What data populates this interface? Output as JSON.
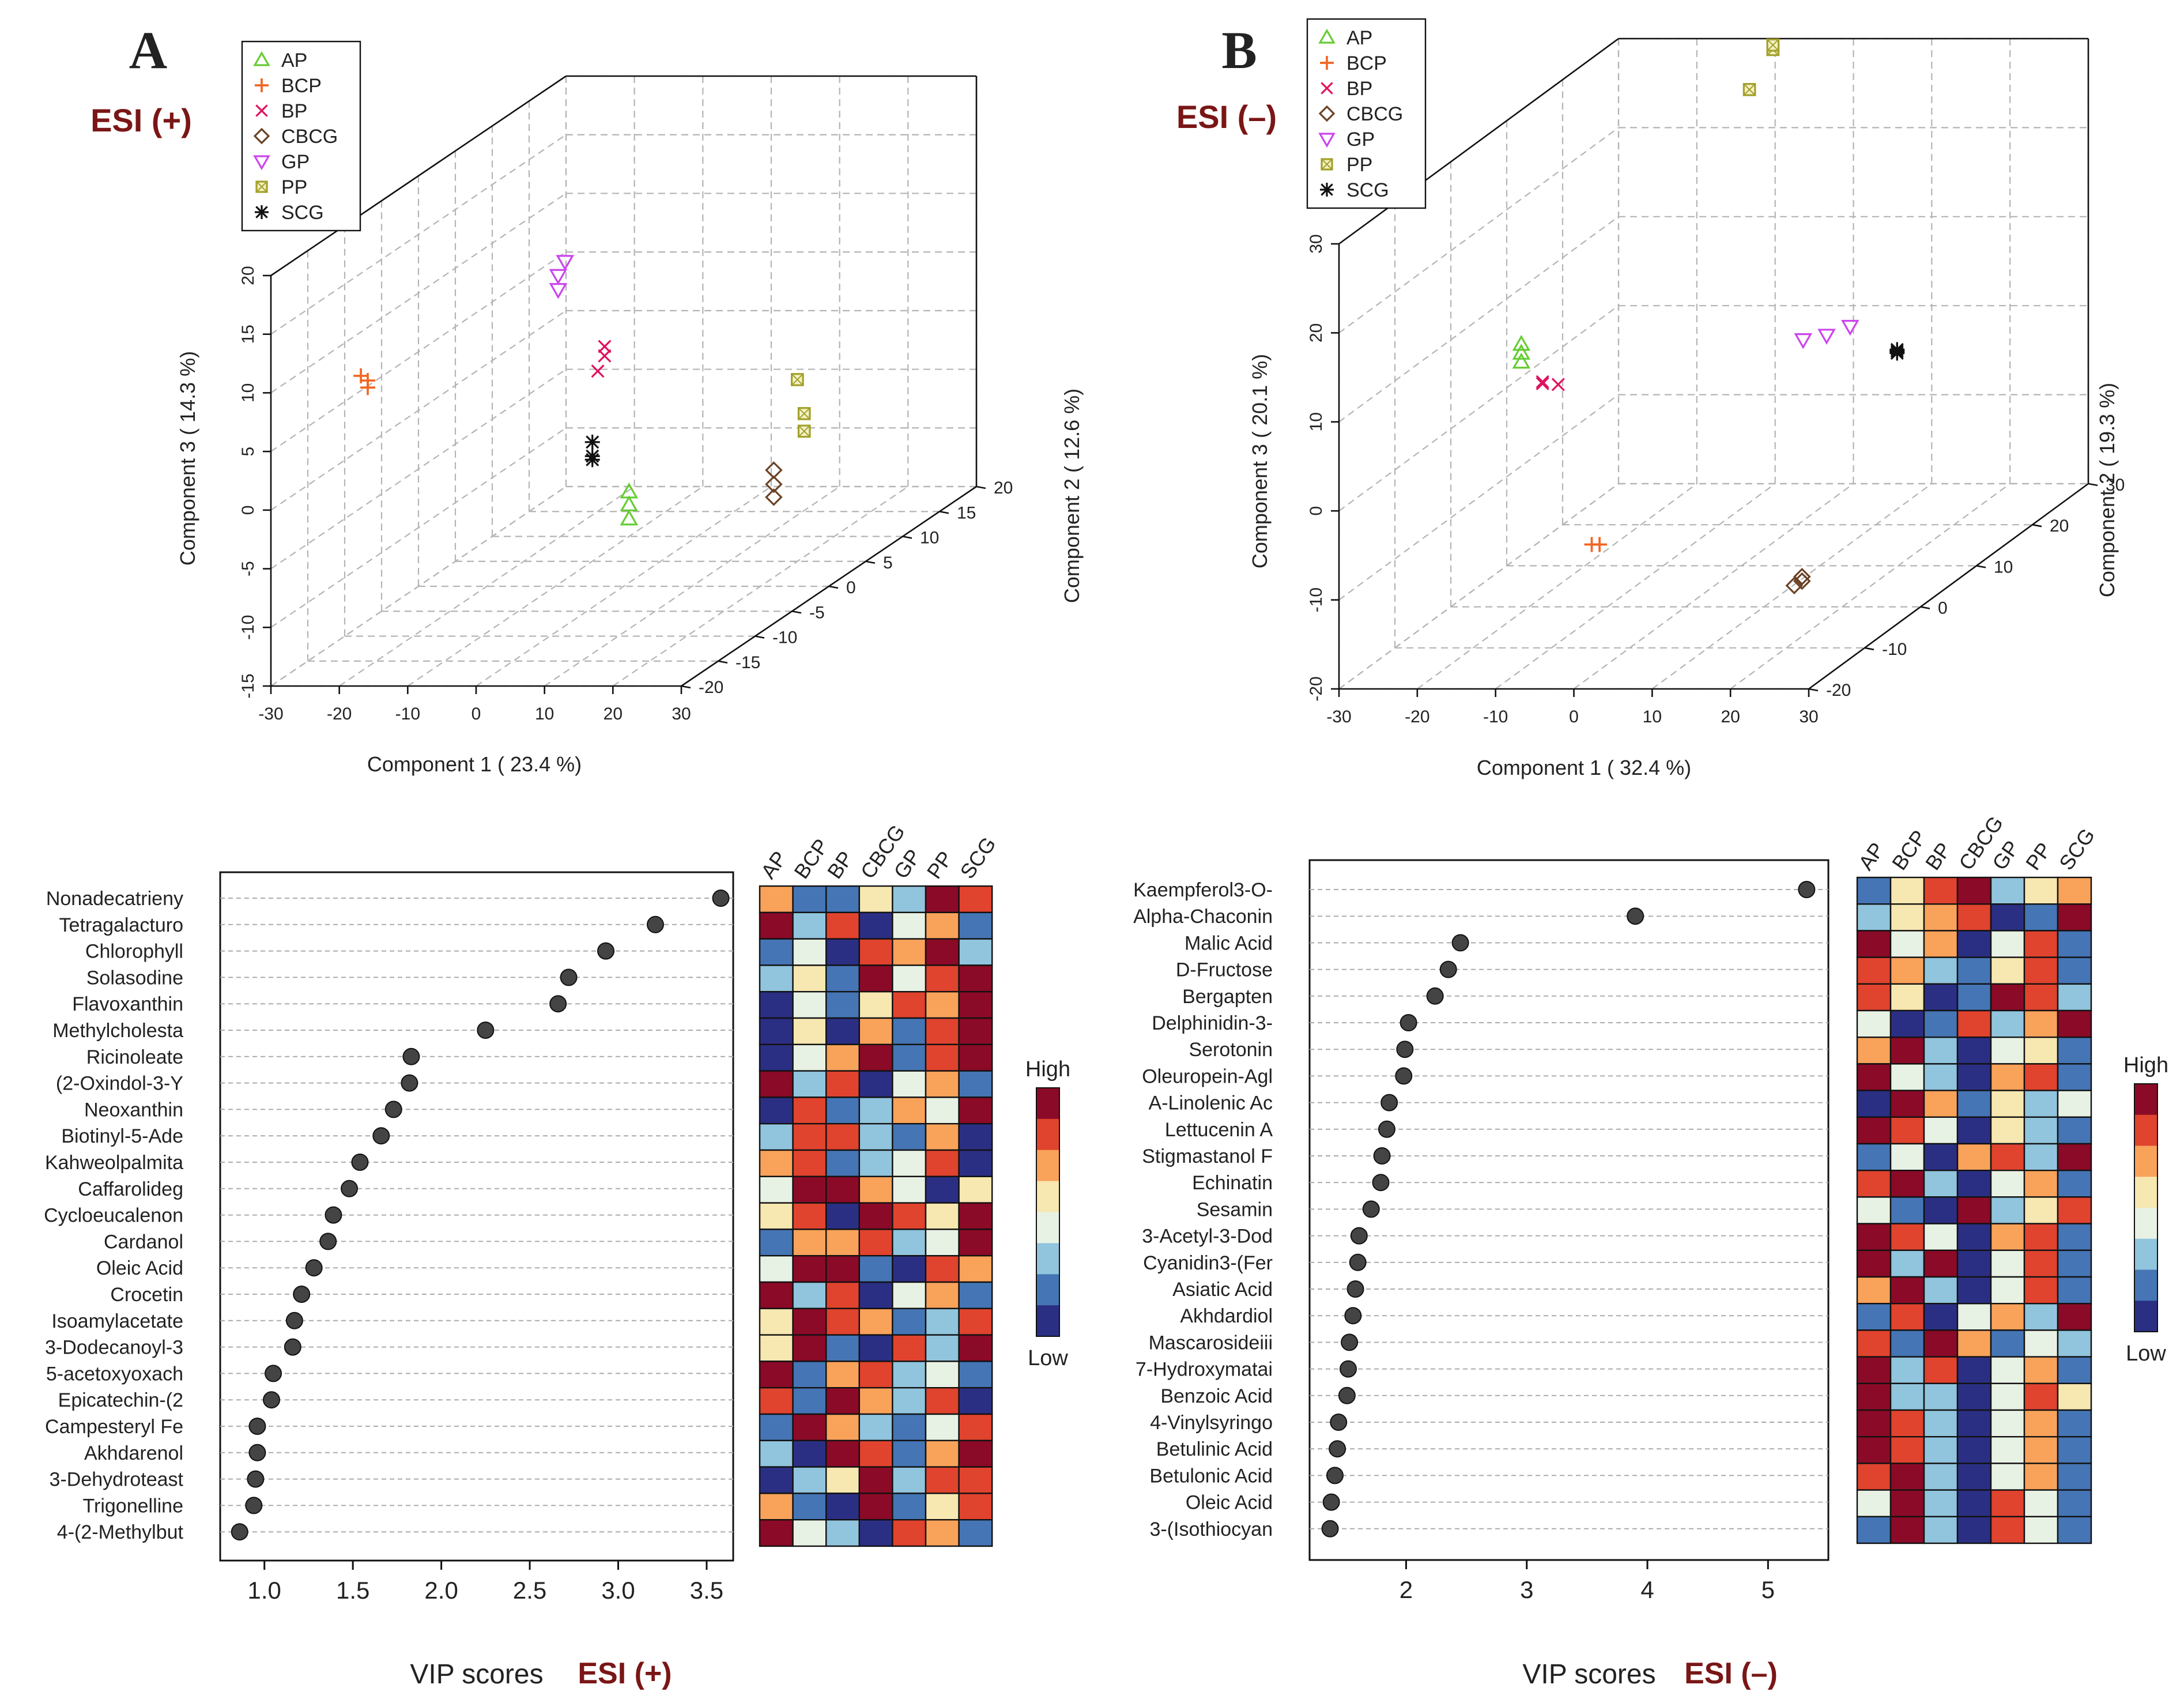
{
  "figure": {
    "colors": {
      "esi_label": "#7a1616",
      "text": "#222222",
      "grid": "#b4b4b4",
      "box": "#111111"
    }
  },
  "scatter_groups": [
    {
      "name": "AP",
      "marker": "triangle-up",
      "color": "#66cc33"
    },
    {
      "name": "BCP",
      "marker": "plus",
      "color": "#f26522"
    },
    {
      "name": "BP",
      "marker": "cross",
      "color": "#e0115f"
    },
    {
      "name": "CBCG",
      "marker": "diamond",
      "color": "#6b4226"
    },
    {
      "name": "GP",
      "marker": "triangle-down",
      "color": "#cc44ee"
    },
    {
      "name": "PP",
      "marker": "boxed-x",
      "color": "#a3a02b"
    },
    {
      "name": "SCG",
      "marker": "asterisk",
      "color": "#111111"
    }
  ],
  "heatmap_scale": {
    "high_label": "High",
    "low_label": "Low",
    "colors": [
      "#2b2f83",
      "#4575b4",
      "#91c4dd",
      "#e8f2e4",
      "#f7e7b0",
      "#f9a25a",
      "#e0432e",
      "#8b0a27"
    ]
  },
  "chart_data": [
    {
      "type": "scatter3d",
      "panel_letter": "A",
      "mode_label": "ESI (+)",
      "title": "",
      "xlabel": "Component 1 ( 23.4 %)",
      "ylabel": "Component 2 ( 12.6 %)",
      "zlabel": "Component 3 ( 14.3 %)",
      "xlim": [
        -30,
        30
      ],
      "ylim": [
        -20,
        20
      ],
      "zlim": [
        -15,
        20
      ],
      "x_ticks": [
        "-30",
        "-20",
        "-10",
        "0",
        "10",
        "20",
        "30"
      ],
      "y_ticks": [
        "-20",
        "-15",
        "-10",
        "-5",
        "0",
        "5",
        "10",
        "15",
        "20"
      ],
      "z_ticks": [
        "-15",
        "-10",
        "-5",
        "0",
        "5",
        "10",
        "15",
        "20"
      ],
      "legend": [
        "AP",
        "BCP",
        "BP",
        "CBCG",
        "GP",
        "PP",
        "SCG"
      ],
      "series": [
        {
          "name": "AP",
          "points": [
            [
              -10,
              10,
              -13.5
            ],
            [
              -10,
              10,
              -12.3
            ],
            [
              -10,
              10,
              -11.2
            ]
          ]
        },
        {
          "name": "BCP",
          "points": [
            [
              -19,
              -18,
              10.6
            ],
            [
              -18,
              -18,
              10.2
            ],
            [
              -18,
              -18,
              9.6
            ]
          ]
        },
        {
          "name": "BP",
          "points": [
            [
              8,
              -10,
              9.7
            ],
            [
              8,
              -10,
              8.9
            ],
            [
              7,
              -10,
              7.6
            ]
          ]
        },
        {
          "name": "CBCG",
          "points": [
            [
              9,
              12,
              -10.2
            ],
            [
              9,
              12,
              -11.4
            ],
            [
              9,
              12,
              -12.5
            ]
          ]
        },
        {
          "name": "GP",
          "points": [
            [
              13,
              -20,
              21.2
            ],
            [
              12,
              -20,
              20.0
            ],
            [
              12,
              -20,
              18.8
            ]
          ]
        },
        {
          "name": "PP",
          "points": [
            [
              20,
              5,
              0.5
            ],
            [
              21,
              5,
              -2.4
            ],
            [
              21,
              5,
              -3.9
            ]
          ]
        },
        {
          "name": "SCG",
          "points": [
            [
              17,
              -20,
              5.8
            ],
            [
              17,
              -20,
              4.6
            ],
            [
              17,
              -20,
              4.3
            ]
          ]
        }
      ]
    },
    {
      "type": "scatter3d",
      "panel_letter": "B",
      "mode_label": "ESI (–)",
      "title": "",
      "xlabel": "Component 1 ( 32.4 %)",
      "ylabel": "Component 2 ( 19.3 %)",
      "zlabel": "Component 3 ( 20.1 %)",
      "xlim": [
        -30,
        30
      ],
      "ylim": [
        -20,
        30
      ],
      "zlim": [
        -20,
        30
      ],
      "x_ticks": [
        "-30",
        "-20",
        "-10",
        "0",
        "10",
        "20",
        "30"
      ],
      "y_ticks": [
        "-20",
        "-10",
        "0",
        "10",
        "20",
        "30"
      ],
      "z_ticks": [
        "-20",
        "-10",
        "0",
        "10",
        "20",
        "30"
      ],
      "legend": [
        "AP",
        "BCP",
        "BP",
        "CBCG",
        "GP",
        "PP",
        "SCG"
      ],
      "series": [
        {
          "name": "AP",
          "points": [
            [
              -21,
              0,
              9.5
            ],
            [
              -21,
              0,
              8.5
            ],
            [
              -21,
              0,
              7.5
            ]
          ]
        },
        {
          "name": "BCP",
          "points": [
            [
              -12,
              0,
              -13
            ],
            [
              -11,
              0,
              -13
            ]
          ]
        },
        {
          "name": "BP",
          "points": [
            [
              -4,
              -20,
              14.5
            ],
            [
              -2,
              -20,
              14.2
            ],
            [
              -4,
              -20,
              14.3
            ]
          ]
        },
        {
          "name": "CBCG",
          "points": [
            [
              22,
              -10,
              -12
            ],
            [
              22,
              -10,
              -12.5
            ],
            [
              21,
              -10,
              -13
            ]
          ]
        },
        {
          "name": "GP",
          "points": [
            [
              15,
              0,
              10
            ],
            [
              18,
              0,
              10.5
            ],
            [
              21,
              0,
              11.5
            ]
          ]
        },
        {
          "name": "PP",
          "points": [
            [
              1,
              10,
              33.5
            ],
            [
              4,
              10,
              38
            ],
            [
              4,
              10,
              38.5
            ]
          ]
        },
        {
          "name": "SCG",
          "points": [
            [
              27,
              0,
              8.5
            ],
            [
              27,
              0,
              8.7
            ],
            [
              27,
              0,
              8.9
            ]
          ]
        }
      ]
    },
    {
      "type": "dot",
      "panel_letter": "",
      "mode_label": "ESI (+)",
      "title": "",
      "xlabel": "VIP scores",
      "xlim": [
        0.75,
        3.65
      ],
      "x_ticks": [
        1.0,
        1.5,
        2.0,
        2.5,
        3.0,
        3.5
      ],
      "x_tick_labels": [
        "1.0",
        "1.5",
        "2.0",
        "2.5",
        "3.0",
        "3.5"
      ],
      "categories": [
        "Nonadecatrieny",
        "Tetragalacturo",
        "Chlorophyll",
        "Solasodine",
        "Flavoxanthin",
        "Methylcholesta",
        "Ricinoleate",
        "(2-Oxindol-3-Y",
        "Neoxanthin",
        "Biotinyl-5-Ade",
        "Kahweolpalmita",
        "Caffarolideg",
        "Cycloeucalenon",
        "Cardanol",
        "Oleic Acid",
        "Crocetin",
        "Isoamylacetate",
        "3-Dodecanoyl-3",
        "5-acetoxyoxach",
        "Epicatechin-(2",
        "Campesteryl Fe",
        "Akhdarenol",
        "3-Dehydroteast",
        "Trigonelline",
        "4-(2-Methylbut"
      ],
      "values": [
        3.58,
        3.21,
        2.93,
        2.72,
        2.66,
        2.25,
        1.83,
        1.82,
        1.73,
        1.66,
        1.54,
        1.48,
        1.39,
        1.36,
        1.28,
        1.21,
        1.17,
        1.16,
        1.05,
        1.04,
        0.96,
        0.96,
        0.95,
        0.94,
        0.86
      ],
      "heatmap_columns": [
        "AP",
        "BCP",
        "BP",
        "CBCG",
        "GP",
        "PP",
        "SCG"
      ],
      "heatmap": [
        [
          5,
          1,
          1,
          4,
          2,
          7,
          6
        ],
        [
          7,
          2,
          6,
          0,
          3,
          5,
          1
        ],
        [
          1,
          3,
          0,
          6,
          5,
          7,
          2
        ],
        [
          2,
          4,
          1,
          7,
          3,
          6,
          7
        ],
        [
          0,
          3,
          1,
          4,
          6,
          5,
          7
        ],
        [
          0,
          4,
          0,
          5,
          1,
          6,
          7
        ],
        [
          0,
          3,
          5,
          7,
          1,
          6,
          7
        ],
        [
          7,
          2,
          6,
          0,
          3,
          5,
          1
        ],
        [
          0,
          6,
          1,
          2,
          5,
          3,
          7
        ],
        [
          2,
          6,
          6,
          2,
          1,
          5,
          0
        ],
        [
          5,
          6,
          1,
          2,
          3,
          6,
          0
        ],
        [
          3,
          7,
          7,
          5,
          3,
          0,
          4
        ],
        [
          4,
          6,
          0,
          7,
          6,
          4,
          7
        ],
        [
          1,
          5,
          5,
          6,
          2,
          3,
          7
        ],
        [
          3,
          7,
          7,
          1,
          0,
          6,
          5
        ],
        [
          7,
          2,
          6,
          0,
          3,
          5,
          1
        ],
        [
          4,
          7,
          6,
          5,
          1,
          2,
          6
        ],
        [
          4,
          7,
          1,
          0,
          6,
          2,
          7
        ],
        [
          7,
          1,
          5,
          6,
          2,
          3,
          1
        ],
        [
          6,
          1,
          7,
          5,
          2,
          6,
          0
        ],
        [
          1,
          7,
          5,
          2,
          1,
          3,
          6
        ],
        [
          2,
          0,
          7,
          6,
          1,
          5,
          7
        ],
        [
          0,
          2,
          4,
          7,
          2,
          6,
          6
        ],
        [
          5,
          1,
          0,
          7,
          1,
          4,
          6
        ],
        [
          7,
          3,
          2,
          0,
          6,
          5,
          1
        ]
      ]
    },
    {
      "type": "dot",
      "panel_letter": "",
      "mode_label": "ESI (–)",
      "title": "",
      "xlabel": "VIP scores",
      "xlim": [
        1.2,
        5.5
      ],
      "x_ticks": [
        2,
        3,
        4,
        5
      ],
      "x_tick_labels": [
        "2",
        "3",
        "4",
        "5"
      ],
      "categories": [
        "Kaempferol3-O-",
        "Alpha-Chaconin",
        "Malic Acid",
        "D-Fructose",
        "Bergapten",
        "Delphinidin-3-",
        "Serotonin",
        "Oleuropein-Agl",
        "A-Linolenic Ac",
        "Lettucenin A",
        "Stigmastanol F",
        "Echinatin",
        "Sesamin",
        "3-Acetyl-3-Dod",
        "Cyanidin3-(Fer",
        "Asiatic Acid",
        "Akhdardiol",
        "Mascarosideiii",
        "7-Hydroxymatai",
        "Benzoic Acid",
        "4-Vinylsyringo",
        "Betulinic Acid",
        "Betulonic Acid",
        "Oleic Acid",
        "3-(Isothiocyan"
      ],
      "values": [
        5.32,
        3.9,
        2.45,
        2.35,
        2.24,
        2.02,
        1.99,
        1.98,
        1.86,
        1.84,
        1.8,
        1.79,
        1.71,
        1.61,
        1.6,
        1.58,
        1.56,
        1.53,
        1.52,
        1.51,
        1.44,
        1.43,
        1.41,
        1.38,
        1.37
      ],
      "heatmap_columns": [
        "AP",
        "BCP",
        "BP",
        "CBCG",
        "GP",
        "PP",
        "SCG"
      ],
      "heatmap": [
        [
          1,
          4,
          6,
          7,
          2,
          4,
          5
        ],
        [
          2,
          4,
          5,
          6,
          0,
          1,
          7
        ],
        [
          7,
          3,
          5,
          0,
          3,
          6,
          1
        ],
        [
          6,
          5,
          2,
          1,
          4,
          6,
          1
        ],
        [
          6,
          4,
          0,
          1,
          7,
          6,
          2
        ],
        [
          3,
          0,
          1,
          6,
          2,
          5,
          7
        ],
        [
          5,
          7,
          2,
          0,
          3,
          4,
          1
        ],
        [
          7,
          3,
          2,
          0,
          5,
          6,
          1
        ],
        [
          0,
          7,
          5,
          1,
          4,
          2,
          3
        ],
        [
          7,
          6,
          3,
          0,
          4,
          2,
          1
        ],
        [
          1,
          3,
          0,
          5,
          6,
          2,
          7
        ],
        [
          6,
          7,
          2,
          0,
          3,
          5,
          1
        ],
        [
          3,
          1,
          0,
          7,
          2,
          4,
          6
        ],
        [
          7,
          6,
          3,
          0,
          5,
          6,
          1
        ],
        [
          7,
          2,
          7,
          0,
          3,
          6,
          1
        ],
        [
          5,
          7,
          2,
          0,
          3,
          6,
          1
        ],
        [
          1,
          6,
          0,
          3,
          5,
          2,
          7
        ],
        [
          6,
          1,
          7,
          5,
          1,
          3,
          2
        ],
        [
          7,
          2,
          6,
          0,
          3,
          5,
          1
        ],
        [
          7,
          2,
          2,
          0,
          3,
          6,
          4
        ],
        [
          7,
          6,
          2,
          0,
          3,
          5,
          1
        ],
        [
          7,
          6,
          2,
          0,
          3,
          5,
          1
        ],
        [
          6,
          7,
          2,
          0,
          3,
          5,
          1
        ],
        [
          3,
          7,
          2,
          0,
          6,
          3,
          1
        ],
        [
          1,
          7,
          2,
          0,
          6,
          3,
          1
        ]
      ]
    }
  ]
}
